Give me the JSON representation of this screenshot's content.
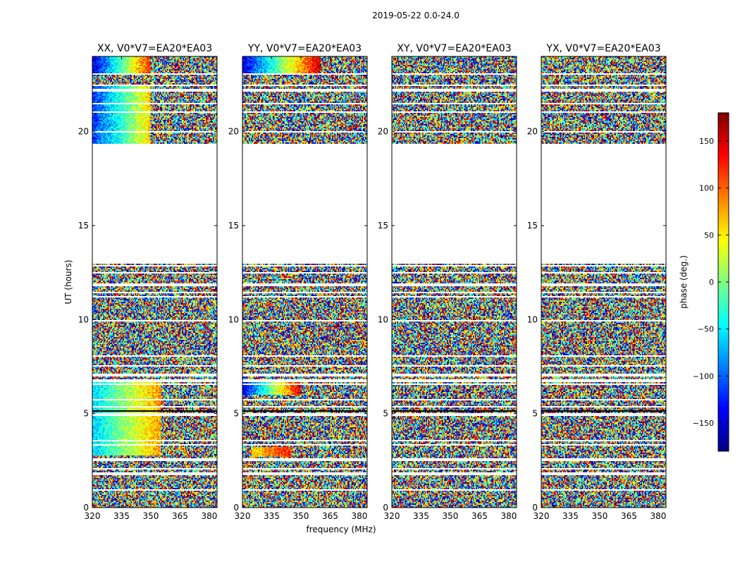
{
  "figure": {
    "suptitle": "2019-05-22 0.0-24.0",
    "xlabel": "frequency (MHz)",
    "ylabel": "UT (hours)"
  },
  "colorbar": {
    "label": "phase (deg.)",
    "range": [
      -180,
      180
    ],
    "ticks": [
      150,
      100,
      50,
      0,
      -50,
      -100,
      -150
    ],
    "tick_labels": [
      "150",
      "100",
      "50",
      "0",
      "−50",
      "−100",
      "−150"
    ],
    "colormap": "jet",
    "colors": [
      "#00007f",
      "#0000ff",
      "#007fff",
      "#00ffff",
      "#7fff7f",
      "#ffff00",
      "#ff7f00",
      "#ff0000",
      "#7f0000"
    ]
  },
  "chart_data": [
    {
      "type": "heatmap",
      "title": "XX, V0*V7=EA20*EA03",
      "xlim": [
        320,
        384
      ],
      "ylim": [
        0,
        24
      ],
      "xticks": [
        320,
        335,
        350,
        365,
        380
      ],
      "yticks": [
        0,
        5,
        10,
        15,
        20
      ],
      "value": "phase (deg.)",
      "data_gap_hours": [
        19.3,
        13.0
      ],
      "coherent_phase_bands": [
        {
          "ut": [
            23.0,
            24.0
          ],
          "freq": [
            320,
            350
          ],
          "phase_trend": "-150 to 120"
        },
        {
          "ut": [
            19.3,
            22.5
          ],
          "freq": [
            320,
            350
          ],
          "phase_trend": "-120 to 60"
        },
        {
          "ut": [
            2.8,
            6.7
          ],
          "freq": [
            320,
            355
          ],
          "phase_trend": "-60 to 80"
        }
      ]
    },
    {
      "type": "heatmap",
      "title": "YY, V0*V7=EA20*EA03",
      "xlim": [
        320,
        384
      ],
      "ylim": [
        0,
        24
      ],
      "xticks": [
        320,
        335,
        350,
        365,
        380
      ],
      "yticks": [
        0,
        5,
        10,
        15,
        20
      ],
      "value": "phase (deg.)",
      "data_gap_hours": [
        19.3,
        13.0
      ],
      "coherent_phase_bands": [
        {
          "ut": [
            23.0,
            24.0
          ],
          "freq": [
            320,
            360
          ],
          "phase_trend": "-150 to 150"
        },
        {
          "ut": [
            6.0,
            6.7
          ],
          "freq": [
            320,
            350
          ],
          "phase_trend": "-150 to 150"
        },
        {
          "ut": [
            2.7,
            3.2
          ],
          "freq": [
            325,
            345
          ],
          "phase_trend": "60 to 120"
        }
      ]
    },
    {
      "type": "heatmap",
      "title": "XY, V0*V7=EA20*EA03",
      "xlim": [
        320,
        384
      ],
      "ylim": [
        0,
        24
      ],
      "xticks": [
        320,
        335,
        350,
        365,
        380
      ],
      "yticks": [
        0,
        5,
        10,
        15,
        20
      ],
      "value": "phase (deg.)",
      "data_gap_hours": [
        19.3,
        13.0
      ],
      "coherent_phase_bands": []
    },
    {
      "type": "heatmap",
      "title": "YX, V0*V7=EA20*EA03",
      "xlim": [
        320,
        384
      ],
      "ylim": [
        0,
        24
      ],
      "xticks": [
        320,
        335,
        350,
        365,
        380
      ],
      "yticks": [
        0,
        5,
        10,
        15,
        20
      ],
      "value": "phase (deg.)",
      "data_gap_hours": [
        19.3,
        13.0
      ],
      "coherent_phase_bands": []
    }
  ]
}
